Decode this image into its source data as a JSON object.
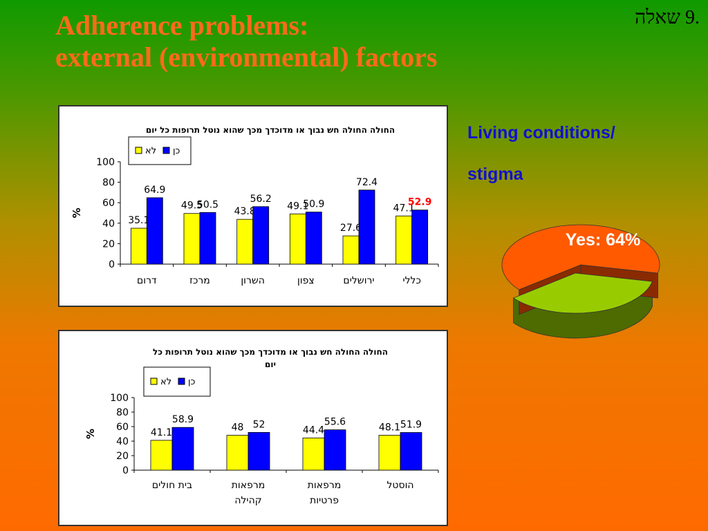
{
  "slide": {
    "title_line1": "Adherence problems:",
    "title_line2": "external (environmental) factors",
    "question_number": ".9 שאלה",
    "side_label_line1": "Living conditions/",
    "side_label_line2": "stigma"
  },
  "chart_data": [
    {
      "type": "bar",
      "title": "החולה החולה חש נבוך או מדוכדך מכך שהוא נוטל תרופות כל יום",
      "ylabel": "%",
      "ylim": [
        0,
        100
      ],
      "yticks": [
        0,
        20,
        40,
        60,
        80,
        100
      ],
      "categories": [
        "דרום",
        "מרכז",
        "השרון",
        "צפון",
        "ירושלים",
        "כללי"
      ],
      "legend_position": "top-left",
      "series": [
        {
          "name": "לא",
          "color": "#ffff00",
          "values": [
            35.1,
            49.5,
            43.8,
            49.1,
            27.6,
            47.1
          ]
        },
        {
          "name": "כן",
          "color": "#0000ff",
          "values": [
            64.9,
            50.5,
            56.2,
            50.9,
            72.4,
            52.9
          ]
        }
      ],
      "highlight": {
        "series": 1,
        "index": 5,
        "color": "#ff0000"
      }
    },
    {
      "type": "bar",
      "title_line1": "החולה החולה חש נבוך או מדוכדך מכך שהוא נוטל תרופות כל",
      "title_line2": "יום",
      "ylabel": "%",
      "ylim": [
        0,
        100
      ],
      "yticks": [
        0,
        20,
        40,
        60,
        80,
        100
      ],
      "categories": [
        [
          "בית חולים"
        ],
        [
          "מרפאות",
          "קהילה"
        ],
        [
          "מרפאות",
          "פרטיות"
        ],
        [
          "הוסטל"
        ]
      ],
      "legend_position": "top-left",
      "series": [
        {
          "name": "לא",
          "color": "#ffff00",
          "values": [
            41.1,
            48,
            44.4,
            48.1
          ]
        },
        {
          "name": "כן",
          "color": "#0000ff",
          "values": [
            58.9,
            52,
            55.6,
            51.9
          ]
        }
      ]
    },
    {
      "type": "pie",
      "slices": [
        {
          "label": "Yes: 64%",
          "value": 64,
          "color": "#ff5a00"
        },
        {
          "label": "",
          "value": 36,
          "color": "#99cc00"
        }
      ]
    }
  ]
}
